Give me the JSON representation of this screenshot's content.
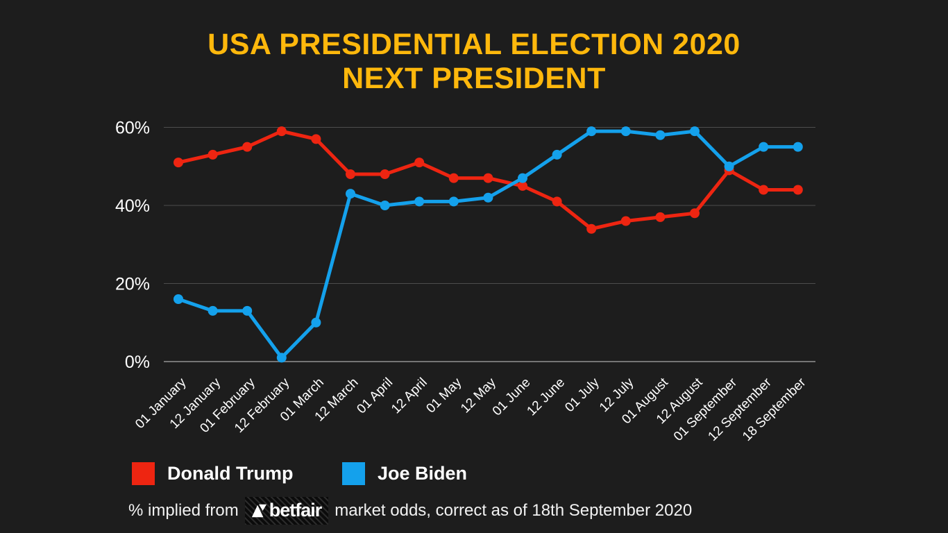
{
  "title": {
    "line1": "USA PRESIDENTIAL ELECTION 2020",
    "line2": "NEXT PRESIDENT"
  },
  "colors": {
    "background": "#1d1d1d",
    "title": "#FFB80C",
    "trump": "#ee2511",
    "biden": "#14a1ec",
    "gridline": "#4d4d4d",
    "axis_line": "#757575",
    "tick_text": "#ffffff"
  },
  "chart_data": {
    "type": "line",
    "title": "USA PRESIDENTIAL ELECTION 2020 - NEXT PRESIDENT",
    "categories": [
      "01 January",
      "12 January",
      "01 February",
      "12 February",
      "01 March",
      "12 March",
      "01 April",
      "12 April",
      "01 May",
      "12 May",
      "01 June",
      "12 June",
      "01 July",
      "12 July",
      "01 August",
      "12 August",
      "01 September",
      "12 September",
      "18 September"
    ],
    "series": [
      {
        "name": "Donald Trump",
        "color": "#ee2511",
        "values": [
          51,
          53,
          55,
          59,
          57,
          48,
          48,
          51,
          47,
          47,
          45,
          41,
          34,
          36,
          37,
          38,
          49,
          44,
          44
        ]
      },
      {
        "name": "Joe Biden",
        "color": "#14a1ec",
        "values": [
          16,
          13,
          13,
          1,
          10,
          43,
          40,
          41,
          41,
          42,
          47,
          53,
          59,
          59,
          58,
          59,
          50,
          55,
          55
        ]
      }
    ],
    "xlabel": "",
    "ylabel": "",
    "ylim": [
      0,
      60
    ],
    "yticks": [
      {
        "value": 60,
        "label": "60%"
      },
      {
        "value": 40,
        "label": "40%"
      },
      {
        "value": 20,
        "label": "20%"
      },
      {
        "value": 0,
        "label": "0%"
      }
    ],
    "grid": true,
    "x_tick_rotation": 45,
    "marker": "circle",
    "legend_position": "bottom-left"
  },
  "footer": {
    "prefix": "% implied from",
    "logo_text": "betfair",
    "suffix": "market odds, correct as of 18th September 2020"
  }
}
